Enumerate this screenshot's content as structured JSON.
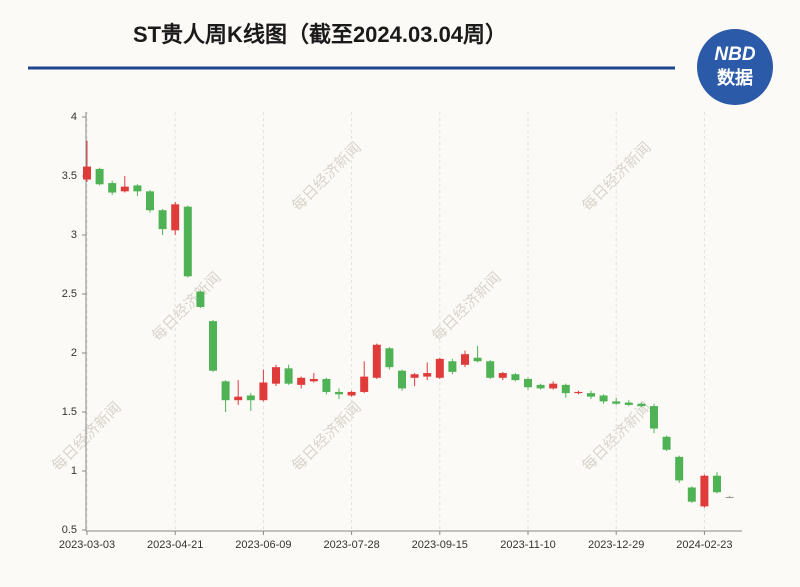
{
  "chart_data": {
    "type": "candlestick",
    "title": "ST贵人周K线图（截至2024.03.04周）",
    "logo": [
      "NBD",
      "数据"
    ],
    "watermark": "每日经济新闻",
    "categories": [
      "2023-03-03",
      null,
      null,
      null,
      null,
      null,
      null,
      "2023-04-21",
      null,
      null,
      null,
      null,
      null,
      null,
      "2023-06-09",
      null,
      null,
      null,
      null,
      null,
      null,
      "2023-07-28",
      null,
      null,
      null,
      null,
      null,
      null,
      "2023-09-15",
      null,
      null,
      null,
      null,
      null,
      null,
      "2023-11-10",
      null,
      null,
      null,
      null,
      null,
      null,
      "2023-12-29",
      null,
      null,
      null,
      null,
      null,
      null,
      "2024-02-23",
      null,
      null
    ],
    "open": [
      3.47,
      3.56,
      3.44,
      3.37,
      3.42,
      3.37,
      3.21,
      3.04,
      3.24,
      2.52,
      2.27,
      1.76,
      1.6,
      1.64,
      1.6,
      1.74,
      1.87,
      1.73,
      1.76,
      1.78,
      1.67,
      1.64,
      1.67,
      1.79,
      2.04,
      1.85,
      1.79,
      1.8,
      1.79,
      1.93,
      1.9,
      1.96,
      1.93,
      1.79,
      1.82,
      1.78,
      1.73,
      1.7,
      1.73,
      1.66,
      1.66,
      1.64,
      1.59,
      1.58,
      1.57,
      1.55,
      1.29,
      1.12,
      0.86,
      0.7,
      0.96,
      0.78
    ],
    "high": [
      3.8,
      3.57,
      3.46,
      3.5,
      3.43,
      3.38,
      3.22,
      3.28,
      3.25,
      2.53,
      2.28,
      1.77,
      1.77,
      1.66,
      1.86,
      1.9,
      1.9,
      1.8,
      1.83,
      1.79,
      1.7,
      1.68,
      1.93,
      2.08,
      2.05,
      1.86,
      1.83,
      1.92,
      1.96,
      1.95,
      2.02,
      2.06,
      1.94,
      1.84,
      1.83,
      1.79,
      1.74,
      1.76,
      1.74,
      1.68,
      1.68,
      1.65,
      1.62,
      1.6,
      1.58,
      1.57,
      1.3,
      1.13,
      0.87,
      0.97,
      0.99,
      0.79
    ],
    "low": [
      3.45,
      3.42,
      3.34,
      3.36,
      3.33,
      3.19,
      3.0,
      3.0,
      2.64,
      2.38,
      1.84,
      1.5,
      1.56,
      1.51,
      1.59,
      1.72,
      1.73,
      1.7,
      1.75,
      1.65,
      1.61,
      1.63,
      1.66,
      1.78,
      1.86,
      1.68,
      1.72,
      1.77,
      1.78,
      1.82,
      1.88,
      1.92,
      1.78,
      1.77,
      1.76,
      1.69,
      1.69,
      1.69,
      1.62,
      1.65,
      1.61,
      1.57,
      1.56,
      1.55,
      1.54,
      1.32,
      1.17,
      0.9,
      0.73,
      0.69,
      0.81,
      0.77
    ],
    "close": [
      3.58,
      3.43,
      3.36,
      3.41,
      3.37,
      3.21,
      3.05,
      3.26,
      2.65,
      2.39,
      1.85,
      1.6,
      1.63,
      1.6,
      1.75,
      1.88,
      1.74,
      1.79,
      1.78,
      1.67,
      1.65,
      1.67,
      1.8,
      2.07,
      1.88,
      1.7,
      1.82,
      1.83,
      1.95,
      1.84,
      1.99,
      1.93,
      1.79,
      1.83,
      1.77,
      1.71,
      1.7,
      1.74,
      1.66,
      1.67,
      1.63,
      1.59,
      1.57,
      1.56,
      1.55,
      1.36,
      1.18,
      0.92,
      0.74,
      0.96,
      0.82,
      0.78
    ],
    "up_color": "#e03b3b",
    "down_color": "#4fb255",
    "flat_color": "#999999",
    "ylim": [
      0.5,
      4
    ],
    "yticks": [
      0.5,
      1,
      1.5,
      2,
      2.5,
      3,
      3.5,
      4
    ],
    "grid": true
  }
}
